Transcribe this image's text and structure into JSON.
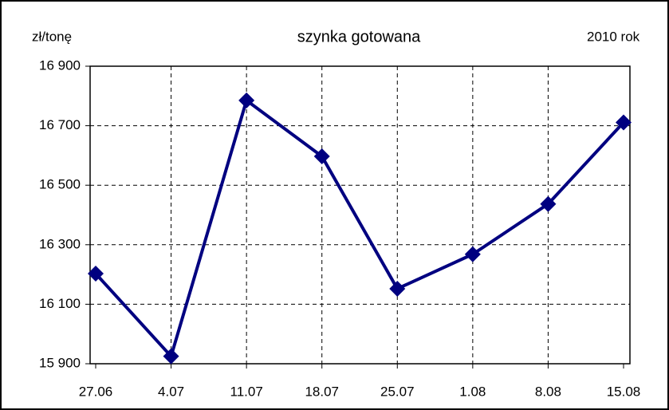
{
  "chart_data": {
    "type": "line",
    "title": "szynka gotowana",
    "y_label": "zł/tonę",
    "annotation": "2010 rok",
    "categories": [
      "27.06",
      "4.07",
      "11.07",
      "18.07",
      "25.07",
      "1.08",
      "8.08",
      "15.08"
    ],
    "series": [
      {
        "name": "szynka gotowana",
        "color": "#000080",
        "values": [
          16203,
          15925,
          16785,
          16597,
          16152,
          16268,
          16437,
          16711
        ]
      }
    ],
    "ylim": [
      15900,
      16900
    ],
    "yticks": [
      {
        "value": 15900,
        "label": "15 900"
      },
      {
        "value": 16100,
        "label": "16 100"
      },
      {
        "value": 16300,
        "label": "16 300"
      },
      {
        "value": 16500,
        "label": "16 500"
      },
      {
        "value": 16700,
        "label": "16 700"
      },
      {
        "value": 16900,
        "label": "16 900"
      }
    ],
    "grid": true
  }
}
